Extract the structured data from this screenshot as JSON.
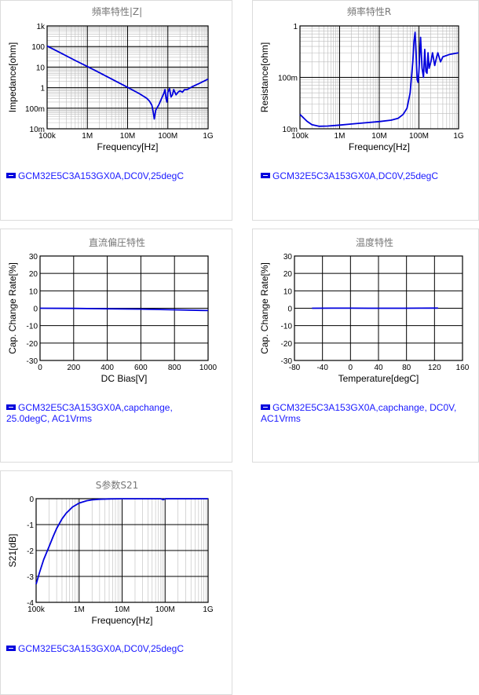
{
  "colors": {
    "series": "#0000dd",
    "grid_major": "#000000",
    "grid_minor": "#bbbbbb",
    "legend_text": "#1a1aff",
    "title": "#777777"
  },
  "chart_data": [
    {
      "id": "impedance",
      "type": "line",
      "title": "頻率特性|Z|",
      "xlabel": "Frequency[Hz]",
      "ylabel": "Impedance[ohm]",
      "xscale": "log",
      "yscale": "log",
      "xlim": [
        100000,
        1000000000
      ],
      "ylim": [
        0.01,
        1000
      ],
      "xticks": [
        100000,
        1000000,
        10000000,
        100000000,
        1000000000
      ],
      "xticklabels": [
        "100k",
        "1M",
        "10M",
        "100M",
        "1G"
      ],
      "yticks": [
        0.01,
        0.1,
        1,
        10,
        100,
        1000
      ],
      "yticklabels": [
        "10m",
        "100m",
        "1",
        "10",
        "100",
        "1k"
      ],
      "grid": true,
      "series": [
        {
          "x": [
            100000,
            200000,
            500000,
            1000000,
            2000000,
            5000000,
            10000000,
            20000000,
            30000000,
            35000000,
            40000000,
            43000000,
            46000000,
            50000000,
            60000000,
            70000000,
            80000000,
            85000000,
            90000000,
            95000000,
            100000000,
            110000000,
            120000000,
            130000000,
            140000000,
            160000000,
            180000000,
            200000000,
            230000000,
            260000000,
            300000000,
            400000000,
            600000000,
            1000000000
          ],
          "y": [
            105,
            53,
            21,
            10.6,
            5.3,
            2.1,
            1.04,
            0.5,
            0.3,
            0.22,
            0.14,
            0.07,
            0.03,
            0.08,
            0.15,
            0.3,
            0.55,
            0.8,
            0.3,
            0.2,
            0.6,
            0.9,
            0.35,
            0.45,
            0.8,
            0.45,
            0.6,
            0.7,
            0.6,
            0.8,
            0.8,
            1.1,
            1.6,
            2.6
          ]
        }
      ]
    },
    {
      "id": "resistance",
      "type": "line",
      "title": "頻率特性R",
      "xlabel": "Frequency[Hz]",
      "ylabel": "Resistance[ohm]",
      "xscale": "log",
      "yscale": "log",
      "xlim": [
        100000,
        1000000000
      ],
      "ylim": [
        0.01,
        1
      ],
      "xticks": [
        100000,
        1000000,
        10000000,
        100000000,
        1000000000
      ],
      "xticklabels": [
        "100k",
        "1M",
        "10M",
        "100M",
        "1G"
      ],
      "yticks": [
        0.01,
        0.1,
        1
      ],
      "yticklabels": [
        "10m",
        "100m",
        "1"
      ],
      "grid": true,
      "series": [
        {
          "x": [
            100000,
            150000,
            200000,
            300000,
            500000,
            1000000,
            2000000,
            5000000,
            10000000,
            20000000,
            30000000,
            40000000,
            50000000,
            60000000,
            70000000,
            75000000,
            80000000,
            85000000,
            90000000,
            95000000,
            100000000,
            110000000,
            120000000,
            130000000,
            140000000,
            150000000,
            160000000,
            170000000,
            180000000,
            200000000,
            220000000,
            250000000,
            280000000,
            300000000,
            350000000,
            400000000,
            600000000,
            1000000000
          ],
          "y": [
            0.019,
            0.014,
            0.012,
            0.0112,
            0.0113,
            0.0118,
            0.0124,
            0.0132,
            0.0138,
            0.0147,
            0.016,
            0.019,
            0.025,
            0.05,
            0.2,
            0.5,
            0.75,
            0.3,
            0.09,
            0.08,
            0.13,
            0.6,
            0.15,
            0.1,
            0.35,
            0.13,
            0.12,
            0.3,
            0.15,
            0.2,
            0.3,
            0.17,
            0.25,
            0.3,
            0.2,
            0.25,
            0.28,
            0.3
          ]
        }
      ]
    },
    {
      "id": "dcbias",
      "type": "line",
      "title": "直流偏圧特性",
      "xlabel": "DC Bias[V]",
      "ylabel": "Cap. Change Rate[%]",
      "xscale": "linear",
      "yscale": "linear",
      "xlim": [
        0,
        1000
      ],
      "ylim": [
        -30,
        30
      ],
      "xticks": [
        0,
        200,
        400,
        600,
        800,
        1000
      ],
      "xticklabels": [
        "0",
        "200",
        "400",
        "600",
        "800",
        "1000"
      ],
      "yticks": [
        -30,
        -20,
        -10,
        0,
        10,
        20,
        30
      ],
      "yticklabels": [
        "-30",
        "-20",
        "-10",
        "0",
        "10",
        "20",
        "30"
      ],
      "grid": true,
      "series": [
        {
          "x": [
            0,
            200,
            400,
            600,
            800,
            1000
          ],
          "y": [
            0,
            -0.1,
            -0.3,
            -0.5,
            -0.9,
            -1.3
          ]
        }
      ]
    },
    {
      "id": "temperature",
      "type": "line",
      "title": "温度特性",
      "xlabel": "Temperature[degC]",
      "ylabel": "Cap. Change Rate[%]",
      "xscale": "linear",
      "yscale": "linear",
      "xlim": [
        -80,
        160
      ],
      "ylim": [
        -30,
        30
      ],
      "xticks": [
        -80,
        -40,
        0,
        40,
        80,
        120,
        160
      ],
      "xticklabels": [
        "-80",
        "-40",
        "0",
        "40",
        "80",
        "120",
        "160"
      ],
      "yticks": [
        -30,
        -20,
        -10,
        0,
        10,
        20,
        30
      ],
      "yticklabels": [
        "-30",
        "-20",
        "-10",
        "0",
        "10",
        "20",
        "30"
      ],
      "grid": true,
      "series": [
        {
          "x": [
            -55,
            -25,
            0,
            25,
            50,
            75,
            100,
            125
          ],
          "y": [
            0,
            0.05,
            0.05,
            0,
            0,
            0,
            0.05,
            0.1
          ]
        }
      ]
    },
    {
      "id": "s21",
      "type": "line",
      "title": "S参数S21",
      "xlabel": "Frequency[Hz]",
      "ylabel": "S21[dB]",
      "xscale": "log",
      "yscale": "linear",
      "xlim": [
        100000,
        1000000000
      ],
      "ylim": [
        -4,
        0
      ],
      "xticks": [
        100000,
        1000000,
        10000000,
        100000000,
        1000000000
      ],
      "xticklabels": [
        "100k",
        "1M",
        "10M",
        "100M",
        "1G"
      ],
      "yticks": [
        -4,
        -3,
        -2,
        -1,
        0
      ],
      "yticklabels": [
        "-4",
        "-3",
        "-2",
        "-1",
        "0"
      ],
      "grid": true,
      "series": [
        {
          "x": [
            100000,
            120000,
            150000,
            200000,
            250000,
            300000,
            400000,
            500000,
            700000,
            1000000,
            1500000,
            2000000,
            3000000,
            5000000,
            10000000,
            30000000,
            80000000,
            90000000,
            100000000,
            120000000,
            300000000,
            1000000000
          ],
          "y": [
            -3.3,
            -2.85,
            -2.35,
            -1.85,
            -1.45,
            -1.15,
            -0.78,
            -0.56,
            -0.32,
            -0.17,
            -0.08,
            -0.045,
            -0.02,
            -0.01,
            -0.004,
            -0.002,
            -0.003,
            -0.04,
            -0.005,
            -0.003,
            -0.002,
            -0.002
          ]
        }
      ]
    }
  ],
  "legends": {
    "impedance": [
      "GCM32E5C3A153GX0A,DC0V,25degC"
    ],
    "resistance": [
      "GCM32E5C3A153GX0A,DC0V,25degC"
    ],
    "dcbias": [
      "GCM32E5C3A153GX0A,capchange,",
      "25.0degC, AC1Vrms"
    ],
    "temperature": [
      "GCM32E5C3A153GX0A,capchange, DC0V,",
      "AC1Vrms"
    ],
    "s21": [
      "GCM32E5C3A153GX0A,DC0V,25degC"
    ]
  }
}
